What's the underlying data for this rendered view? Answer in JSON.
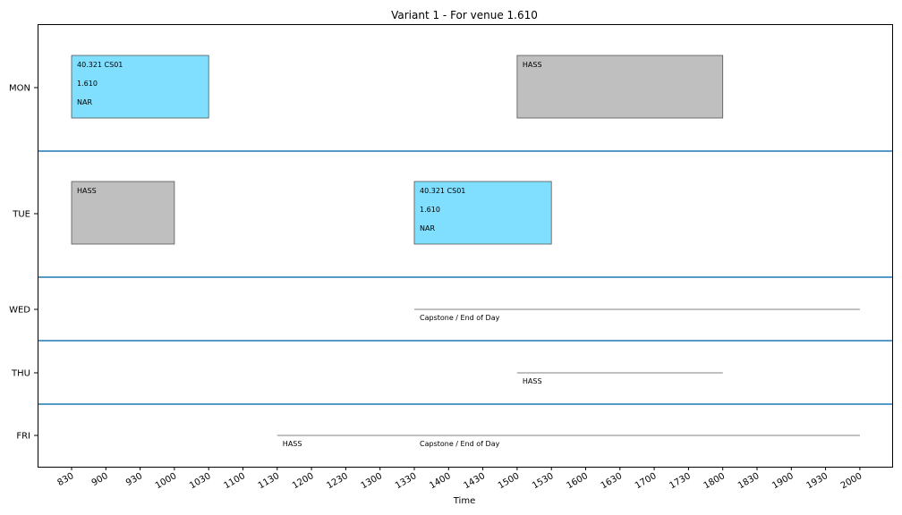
{
  "chart_data": {
    "type": "timeline",
    "title": "Variant 1 - For venue 1.610",
    "xlabel": "Time",
    "ylabel": "",
    "xlim": [
      800,
      2050
    ],
    "x_ticks": [
      "830",
      "900",
      "930",
      "1000",
      "1030",
      "1100",
      "1130",
      "1200",
      "1230",
      "1300",
      "1330",
      "1400",
      "1430",
      "1500",
      "1530",
      "1600",
      "1630",
      "1700",
      "1730",
      "1800",
      "1830",
      "1900",
      "1930",
      "2000"
    ],
    "days": [
      "MON",
      "TUE",
      "WED",
      "THU",
      "FRI"
    ],
    "colors": {
      "booked": "#80dfff",
      "blocked": "#bfbfbf",
      "separator": "#1f77b4",
      "line": "#808080"
    },
    "events": [
      {
        "day": "MON",
        "start": 830,
        "end": 1030,
        "style": "booked",
        "lines": [
          "40.321 CS01",
          "1.610",
          "NAR"
        ]
      },
      {
        "day": "MON",
        "start": 1500,
        "end": 1800,
        "style": "blocked",
        "lines": [
          "HASS"
        ]
      },
      {
        "day": "TUE",
        "start": 830,
        "end": 1000,
        "style": "blocked",
        "lines": [
          "HASS"
        ]
      },
      {
        "day": "TUE",
        "start": 1330,
        "end": 1530,
        "style": "booked",
        "lines": [
          "40.321 CS01",
          "1.610",
          "NAR"
        ]
      },
      {
        "day": "WED",
        "start": 1330,
        "end": 2000,
        "style": "line",
        "lines": [
          "Capstone / End of Day"
        ]
      },
      {
        "day": "THU",
        "start": 1500,
        "end": 1800,
        "style": "line",
        "lines": [
          "HASS"
        ]
      },
      {
        "day": "FRI",
        "start": 1130,
        "end": 2000,
        "style": "line",
        "lines": [
          "HASS"
        ]
      },
      {
        "day": "FRI",
        "start": 1330,
        "end": 2000,
        "style": "line",
        "lines": [
          "Capstone / End of Day"
        ]
      }
    ]
  }
}
